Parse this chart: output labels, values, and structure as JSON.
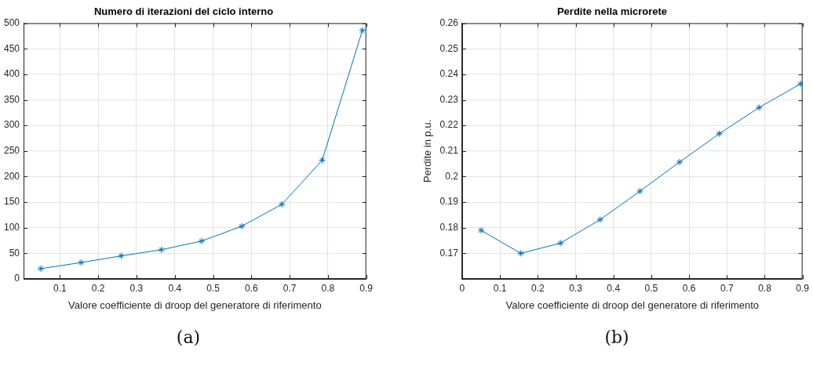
{
  "chart_data": [
    {
      "type": "line",
      "title": "Numero di iterazioni del ciclo interno",
      "xlabel": "Valore coefficiente di droop del generatore di riferimento",
      "x": [
        0.05,
        0.155,
        0.26,
        0.365,
        0.47,
        0.575,
        0.68,
        0.785,
        0.89
      ],
      "series": [
        {
          "color": "#0072bd",
          "values": [
            20,
            32,
            45,
            57,
            74,
            103,
            146,
            232,
            486
          ]
        }
      ],
      "xlim": [
        0.005,
        0.9
      ],
      "xticks": [
        0.1,
        0.2,
        0.3,
        0.4,
        0.5,
        0.6,
        0.7,
        0.8,
        0.9
      ],
      "ylim": [
        0,
        500
      ],
      "yticks": [
        0,
        50,
        100,
        150,
        200,
        250,
        300,
        350,
        400,
        450,
        500
      ],
      "grid": true,
      "legend": false,
      "marker": "cross",
      "line_style": "solid",
      "annotations": [
        "(a)"
      ]
    },
    {
      "type": "line",
      "title": "Perdite nella microrete",
      "xlabel": "Valore coefficiente di droop del generatore di riferimento",
      "ylabel": "Perdite in p.u.",
      "x": [
        0.05,
        0.155,
        0.26,
        0.365,
        0.47,
        0.575,
        0.68,
        0.785,
        0.895
      ],
      "series": [
        {
          "color": "#0072bd",
          "values": [
            0.179,
            0.17,
            0.174,
            0.1832,
            0.1943,
            0.2057,
            0.2168,
            0.227,
            0.2363
          ]
        }
      ],
      "xlim": [
        0,
        0.9
      ],
      "xticks": [
        0,
        0.1,
        0.2,
        0.3,
        0.4,
        0.5,
        0.6,
        0.7,
        0.8,
        0.9
      ],
      "ylim": [
        0.16,
        0.26
      ],
      "yticks": [
        0.17,
        0.18,
        0.19,
        0.2,
        0.21,
        0.22,
        0.23,
        0.24,
        0.25,
        0.26
      ],
      "grid": true,
      "legend": false,
      "marker": "cross",
      "line_style": "solid",
      "annotations": [
        "(b)"
      ]
    }
  ]
}
